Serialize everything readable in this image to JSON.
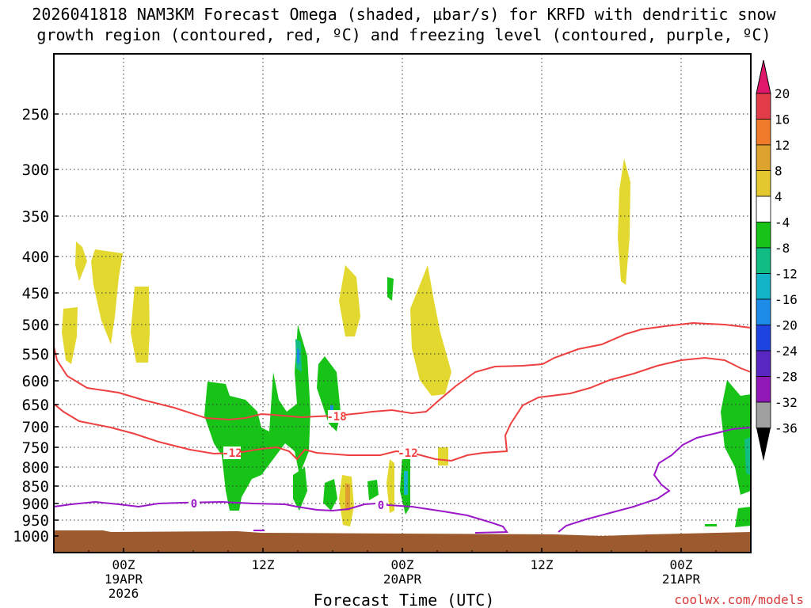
{
  "chart_data": {
    "type": "time-height",
    "title_line1": "2026041818 NAM3KM Forecast Omega (shaded, µbar/s) for KRFD with dendritic snow",
    "title_line2": "growth region (contoured, red, ºC) and freezing level (contoured, purple, ºC)",
    "xlabel": "Forecast Time (UTC)",
    "credit": "coolwx.com/models",
    "x_ticks": [
      {
        "hour": 6,
        "line1": "00Z",
        "line2": "19APR",
        "line3": "2026"
      },
      {
        "hour": 18,
        "line1": "12Z",
        "line2": "",
        "line3": ""
      },
      {
        "hour": 30,
        "line1": "00Z",
        "line2": "20APR",
        "line3": ""
      },
      {
        "hour": 42,
        "line1": "12Z",
        "line2": "",
        "line3": ""
      },
      {
        "hour": 54,
        "line1": "00Z",
        "line2": "21APR",
        "line3": ""
      }
    ],
    "x_range_hours": [
      0,
      60
    ],
    "y_ticks": [
      "250",
      "300",
      "350",
      "400",
      "450",
      "500",
      "550",
      "600",
      "650",
      "700",
      "750",
      "800",
      "850",
      "900",
      "950",
      "1000"
    ],
    "y_range_hpa": [
      200,
      1050
    ],
    "colorbar": {
      "labels": [
        "20",
        "16",
        "12",
        "8",
        "4",
        "-4",
        "-8",
        "-12",
        "-16",
        "-20",
        "-24",
        "-28",
        "-32",
        "-36"
      ],
      "colors": [
        "#e23c48",
        "#ee7a2a",
        "#dba32e",
        "#e3c92f",
        "#ffffff",
        "#17c317",
        "#12bc85",
        "#14b4c8",
        "#1d8ce8",
        "#1f43e0",
        "#5a26c2",
        "#8f18b6",
        "#9f9f9f"
      ],
      "top_arrow_color": "#e0186c",
      "bottom_arrow_color": "#000000"
    },
    "contours": {
      "dgz_label": "-18",
      "dgz_label_2": "-12",
      "dgz_label_3": "-12",
      "freezing_label": "0",
      "freezing_label_2": "0"
    },
    "omega_features": [
      {
        "sign": "positive",
        "max": 8,
        "hour": 1.3,
        "top_hpa": 460,
        "bottom_hpa": 570
      },
      {
        "sign": "positive",
        "max": 4,
        "hour": 2.3,
        "top_hpa": 385,
        "bottom_hpa": 440
      },
      {
        "sign": "positive",
        "max": 8,
        "hour": 4.5,
        "top_hpa": 390,
        "bottom_hpa": 535
      },
      {
        "sign": "positive",
        "max": 8,
        "hour": 7.5,
        "top_hpa": 440,
        "bottom_hpa": 565
      },
      {
        "sign": "negative",
        "min": -8,
        "hour": 16,
        "top_hpa": 610,
        "bottom_hpa": 910
      },
      {
        "sign": "negative",
        "min": -12,
        "hour": 21,
        "top_hpa": 500,
        "bottom_hpa": 700
      },
      {
        "sign": "negative",
        "min": -12,
        "hour": 23,
        "top_hpa": 580,
        "bottom_hpa": 690
      },
      {
        "sign": "positive",
        "max": 12,
        "hour": 24.5,
        "top_hpa": 855,
        "bottom_hpa": 950
      },
      {
        "sign": "positive",
        "max": 8,
        "hour": 26,
        "top_hpa": 395,
        "bottom_hpa": 490
      },
      {
        "sign": "negative",
        "min": -12,
        "hour": 30,
        "top_hpa": 770,
        "bottom_hpa": 920
      },
      {
        "sign": "positive",
        "max": 8,
        "hour": 32,
        "top_hpa": 400,
        "bottom_hpa": 635
      },
      {
        "sign": "positive",
        "max": 8,
        "hour": 49,
        "top_hpa": 285,
        "bottom_hpa": 440
      },
      {
        "sign": "negative",
        "min": -12,
        "hour": 59,
        "top_hpa": 610,
        "bottom_hpa": 870
      }
    ]
  }
}
